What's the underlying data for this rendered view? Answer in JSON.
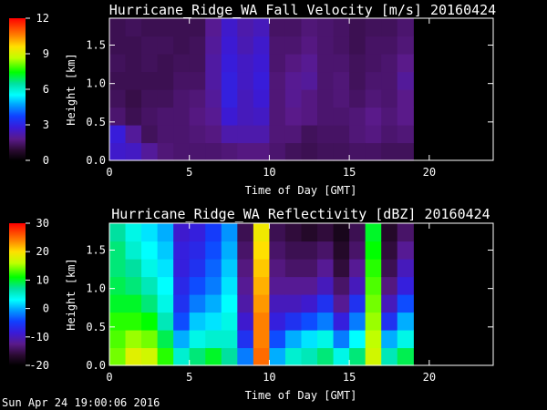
{
  "timestamp": "Sun Apr 24 19:00:06 2016",
  "chart_data": [
    {
      "type": "heatmap",
      "title": "Hurricane_Ridge_WA Fall Velocity [m/s] 20160424",
      "xlabel": "Time of Day [GMT]",
      "ylabel": "Height [km]",
      "xlim": [
        0,
        24
      ],
      "ylim": [
        0,
        1.85
      ],
      "x_ticks": [
        "0",
        "5",
        "10",
        "15",
        "20"
      ],
      "y_ticks": [
        "0.0",
        "0.5",
        "1.0",
        "1.5"
      ],
      "data_extent_x": [
        0,
        19
      ],
      "colorbar": {
        "range": [
          0,
          12
        ],
        "ticks": [
          "0",
          "3",
          "6",
          "9",
          "12"
        ]
      },
      "z": [
        [
          2.6,
          2.8,
          1.5,
          1.3,
          1.2,
          1.3,
          1.2,
          1.2
        ],
        [
          2.5,
          2.0,
          1.2,
          1.1,
          1.2,
          1.2,
          1.2,
          1.3
        ],
        [
          2.0,
          1.3,
          1.4,
          1.3,
          1.2,
          1.3,
          1.3,
          1.2
        ],
        [
          1.6,
          1.5,
          1.5,
          1.3,
          1.2,
          1.2,
          1.3,
          1.2
        ],
        [
          1.5,
          1.5,
          1.5,
          1.5,
          1.4,
          1.3,
          1.2,
          1.2
        ],
        [
          1.5,
          1.6,
          1.7,
          1.6,
          1.4,
          1.3,
          1.3,
          1.2
        ],
        [
          1.5,
          1.7,
          1.9,
          2.0,
          2.1,
          2.1,
          2.0,
          1.9
        ],
        [
          1.6,
          2.2,
          2.7,
          2.9,
          2.9,
          2.8,
          2.7,
          2.6
        ],
        [
          1.7,
          2.2,
          2.4,
          2.4,
          2.5,
          2.5,
          2.3,
          2.2
        ],
        [
          1.7,
          2.2,
          2.5,
          2.7,
          2.8,
          2.7,
          2.6,
          2.4
        ],
        [
          1.5,
          1.6,
          1.6,
          1.6,
          1.6,
          1.5,
          1.5,
          1.4
        ],
        [
          1.3,
          1.6,
          1.8,
          1.9,
          1.9,
          1.7,
          1.5,
          1.4
        ],
        [
          1.2,
          1.3,
          1.7,
          1.7,
          2.0,
          1.9,
          1.7,
          1.6
        ],
        [
          1.3,
          1.4,
          1.5,
          1.5,
          1.5,
          1.5,
          1.5,
          1.5
        ],
        [
          1.3,
          1.4,
          1.5,
          1.6,
          1.6,
          1.5,
          1.4,
          1.4
        ],
        [
          1.4,
          1.6,
          1.6,
          1.4,
          1.3,
          1.3,
          1.2,
          1.2
        ],
        [
          1.4,
          1.7,
          1.8,
          1.6,
          1.5,
          1.4,
          1.4,
          1.3
        ],
        [
          1.3,
          1.5,
          1.6,
          1.5,
          1.5,
          1.5,
          1.4,
          1.3
        ],
        [
          1.3,
          1.6,
          1.8,
          1.8,
          2.0,
          1.8,
          1.6,
          1.5
        ]
      ]
    },
    {
      "type": "heatmap",
      "title": "Hurricane_Ridge_WA Reflectivity [dBZ] 20160424",
      "xlabel": "Time of Day [GMT]",
      "ylabel": "Height [km]",
      "xlim": [
        0,
        24
      ],
      "ylim": [
        0,
        1.85
      ],
      "x_ticks": [
        "0",
        "5",
        "10",
        "15",
        "20"
      ],
      "y_ticks": [
        "0.0",
        "0.5",
        "1.0",
        "1.5"
      ],
      "data_extent_x": [
        0,
        19
      ],
      "colorbar": {
        "range": [
          -20,
          30
        ],
        "ticks": [
          "-20",
          "-10",
          "0",
          "10",
          "20",
          "30"
        ]
      },
      "z": [
        [
          14,
          13,
          12,
          10,
          9,
          8,
          8,
          7
        ],
        [
          18,
          15,
          12,
          10,
          8,
          7,
          5,
          4
        ],
        [
          17,
          14,
          11,
          8,
          6,
          4,
          3,
          2
        ],
        [
          12,
          9,
          6,
          4,
          3,
          2,
          1,
          0
        ],
        [
          5,
          0,
          -4,
          -6,
          -7,
          -8,
          -8,
          -9
        ],
        [
          8,
          4,
          1,
          -2,
          -4,
          -6,
          -7,
          -8
        ],
        [
          10,
          5,
          2,
          0,
          -2,
          -3,
          -4,
          -5
        ],
        [
          7,
          5,
          4,
          3,
          2,
          1,
          0,
          -1
        ],
        [
          -2,
          -6,
          -9,
          -11,
          -12,
          -13,
          -14,
          -15
        ],
        [
          25,
          24,
          24,
          23,
          22,
          21,
          20,
          19
        ],
        [
          0,
          -4,
          -8,
          -10,
          -12,
          -13,
          -14,
          -15
        ],
        [
          5,
          0,
          -6,
          -10,
          -12,
          -14,
          -15,
          -16
        ],
        [
          6,
          2,
          -4,
          -9,
          -12,
          -14,
          -15,
          -17
        ],
        [
          8,
          4,
          -2,
          -6,
          -10,
          -12,
          -14,
          -16
        ],
        [
          4,
          -2,
          -8,
          -12,
          -14,
          -16,
          -17,
          -18
        ],
        [
          8,
          3,
          -2,
          -6,
          -10,
          -12,
          -14,
          -15
        ],
        [
          17,
          16,
          15,
          14,
          13,
          12,
          11,
          10
        ],
        [
          6,
          0,
          -6,
          -10,
          -13,
          -15,
          -16,
          -17
        ],
        [
          9,
          4,
          0,
          -4,
          -8,
          -10,
          -12,
          -14
        ]
      ]
    }
  ]
}
